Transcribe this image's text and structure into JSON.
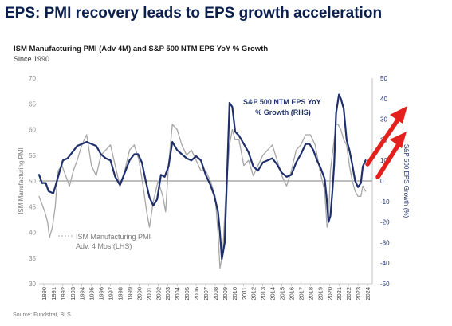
{
  "header": {
    "headline": "EPS: PMI recovery leads to EPS growth acceleration",
    "subtitle": "ISM Manufacturing PMI (Adv 4M) and S&P 500 NTM EPS YoY % Growth",
    "since": "Since 1990",
    "source": "Source: Fundstrat, BLS"
  },
  "colors": {
    "pmi_line": "#a6a6a6",
    "eps_line": "#1f2f6b",
    "arrow": "#e3201b",
    "zero_line": "#555555"
  },
  "chart_data": {
    "type": "line",
    "title": "ISM Manufacturing PMI (Adv 4M) and S&P 500 NTM EPS YoY % Growth",
    "subtitle": "Since 1990",
    "xlim": [
      1990,
      2025
    ],
    "x_tick_labels": [
      "1990",
      "1991",
      "1992",
      "1993",
      "1994",
      "1995",
      "1996",
      "1997",
      "1998",
      "1999",
      "2000",
      "2001",
      "2002",
      "2003",
      "2004",
      "2005",
      "2006",
      "2007",
      "2008",
      "2009",
      "2010",
      "2011",
      "2012",
      "2013",
      "2014",
      "2015",
      "2016",
      "2017",
      "2018",
      "2019",
      "2020",
      "2021",
      "2022",
      "2023",
      "2024"
    ],
    "y_left": {
      "label": "ISM Manufacturing PMI",
      "lim": [
        30,
        70
      ],
      "ticks": [
        "30",
        "35",
        "40",
        "45",
        "50",
        "55",
        "60",
        "65",
        "70"
      ]
    },
    "y_right": {
      "label": "S&P 500 EPS Growth (%)",
      "lim": [
        -50,
        50
      ],
      "ticks": [
        "-50",
        "-40",
        "-30",
        "-20",
        "-10",
        "0",
        "10",
        "20",
        "30",
        "40",
        "50"
      ]
    },
    "annotations": {
      "eps": [
        "S&P 500 NTM EPS YoY",
        "% Growth (RHS)"
      ],
      "pmi": [
        "ISM Manufacturing PMI",
        "Adv. 4 Mos (LHS)"
      ]
    },
    "series": [
      {
        "name": "ISM Manufacturing PMI Adv. 4 Mos (LHS)",
        "axis": "left",
        "x": [
          1990.0,
          1990.3,
          1990.6,
          1990.9,
          1991.1,
          1991.4,
          1991.7,
          1992.0,
          1992.4,
          1992.8,
          1993.2,
          1993.6,
          1994.0,
          1994.5,
          1995.0,
          1995.5,
          1996.0,
          1996.5,
          1997.0,
          1997.5,
          1998.0,
          1998.5,
          1999.0,
          1999.5,
          2000.0,
          2000.5,
          2001.0,
          2001.3,
          2001.6,
          2002.0,
          2002.5,
          2003.0,
          2003.3,
          2003.6,
          2004.0,
          2004.5,
          2005.0,
          2005.5,
          2006.0,
          2006.5,
          2007.0,
          2007.5,
          2008.0,
          2008.5,
          2008.8,
          2009.0,
          2009.3,
          2009.6,
          2010.0,
          2010.3,
          2010.6,
          2011.0,
          2011.5,
          2012.0,
          2012.5,
          2013.0,
          2013.5,
          2014.0,
          2014.5,
          2015.0,
          2015.5,
          2016.0,
          2016.5,
          2017.0,
          2017.5,
          2018.0,
          2018.5,
          2019.0,
          2019.5,
          2020.0,
          2020.25,
          2020.4,
          2020.6,
          2020.8,
          2021.0,
          2021.2,
          2021.4,
          2021.7,
          2022.0,
          2022.3,
          2022.6,
          2022.9,
          2023.2,
          2023.5,
          2023.8,
          2024.0,
          2024.3
        ],
        "values": [
          47,
          45.5,
          44,
          42,
          39,
          41,
          45,
          52,
          53,
          51,
          49,
          52,
          54,
          57,
          59,
          53,
          51,
          55,
          56,
          57,
          53,
          49,
          52,
          56,
          57,
          54,
          48,
          44,
          41,
          46,
          50,
          47,
          44,
          53,
          61,
          60,
          57,
          55,
          56,
          54,
          52,
          52,
          50,
          47,
          40,
          33,
          36,
          47,
          57,
          60,
          58,
          58,
          53,
          54,
          51,
          53,
          55,
          56,
          57,
          54,
          51,
          49,
          52,
          56,
          57,
          59,
          59,
          57,
          52,
          48,
          41,
          42,
          52,
          55,
          58,
          61,
          61,
          60,
          58,
          57,
          53,
          50,
          48,
          47,
          47,
          49,
          48
        ]
      },
      {
        "name": "S&P 500 NTM EPS YoY % Growth (RHS)",
        "axis": "right",
        "x": [
          1990.0,
          1990.3,
          1990.7,
          1991.0,
          1991.5,
          1992.0,
          1992.5,
          1993.0,
          1993.5,
          1994.0,
          1994.5,
          1995.0,
          1995.5,
          1996.0,
          1996.5,
          1997.0,
          1997.5,
          1998.0,
          1998.5,
          1999.0,
          1999.5,
          2000.0,
          2000.4,
          2000.8,
          2001.2,
          2001.6,
          2002.0,
          2002.4,
          2002.8,
          2003.2,
          2003.6,
          2004.0,
          2004.5,
          2005.0,
          2005.5,
          2006.0,
          2006.5,
          2007.0,
          2007.5,
          2008.0,
          2008.4,
          2008.8,
          2009.0,
          2009.2,
          2009.5,
          2009.8,
          2010.0,
          2010.3,
          2010.6,
          2011.0,
          2011.5,
          2012.0,
          2012.5,
          2013.0,
          2013.5,
          2014.0,
          2014.5,
          2015.0,
          2015.5,
          2016.0,
          2016.5,
          2017.0,
          2017.5,
          2018.0,
          2018.4,
          2018.8,
          2019.2,
          2019.6,
          2020.0,
          2020.2,
          2020.4,
          2020.6,
          2020.8,
          2021.0,
          2021.2,
          2021.5,
          2021.7,
          2022.0,
          2022.3,
          2022.6,
          2022.9,
          2023.2,
          2023.5,
          2023.8,
          2024.0,
          2024.3
        ],
        "values": [
          3,
          -1,
          -1,
          -5,
          -6,
          2,
          10,
          11,
          14,
          17,
          18,
          19,
          18,
          17,
          13,
          11,
          10,
          2,
          -2,
          4,
          10,
          13,
          13,
          9,
          0,
          -8,
          -12,
          -9,
          3,
          2,
          7,
          19,
          15,
          13,
          11,
          10,
          12,
          10,
          3,
          -2,
          -7,
          -15,
          -25,
          -38,
          -30,
          10,
          38,
          36,
          24,
          22,
          18,
          14,
          7,
          5,
          9,
          10,
          11,
          8,
          4,
          2,
          3,
          9,
          13,
          18,
          18,
          15,
          10,
          6,
          1,
          -8,
          -20,
          -17,
          -6,
          8,
          33,
          42,
          40,
          35,
          20,
          15,
          8,
          0,
          -3,
          -1,
          7,
          10
        ]
      }
    ]
  }
}
